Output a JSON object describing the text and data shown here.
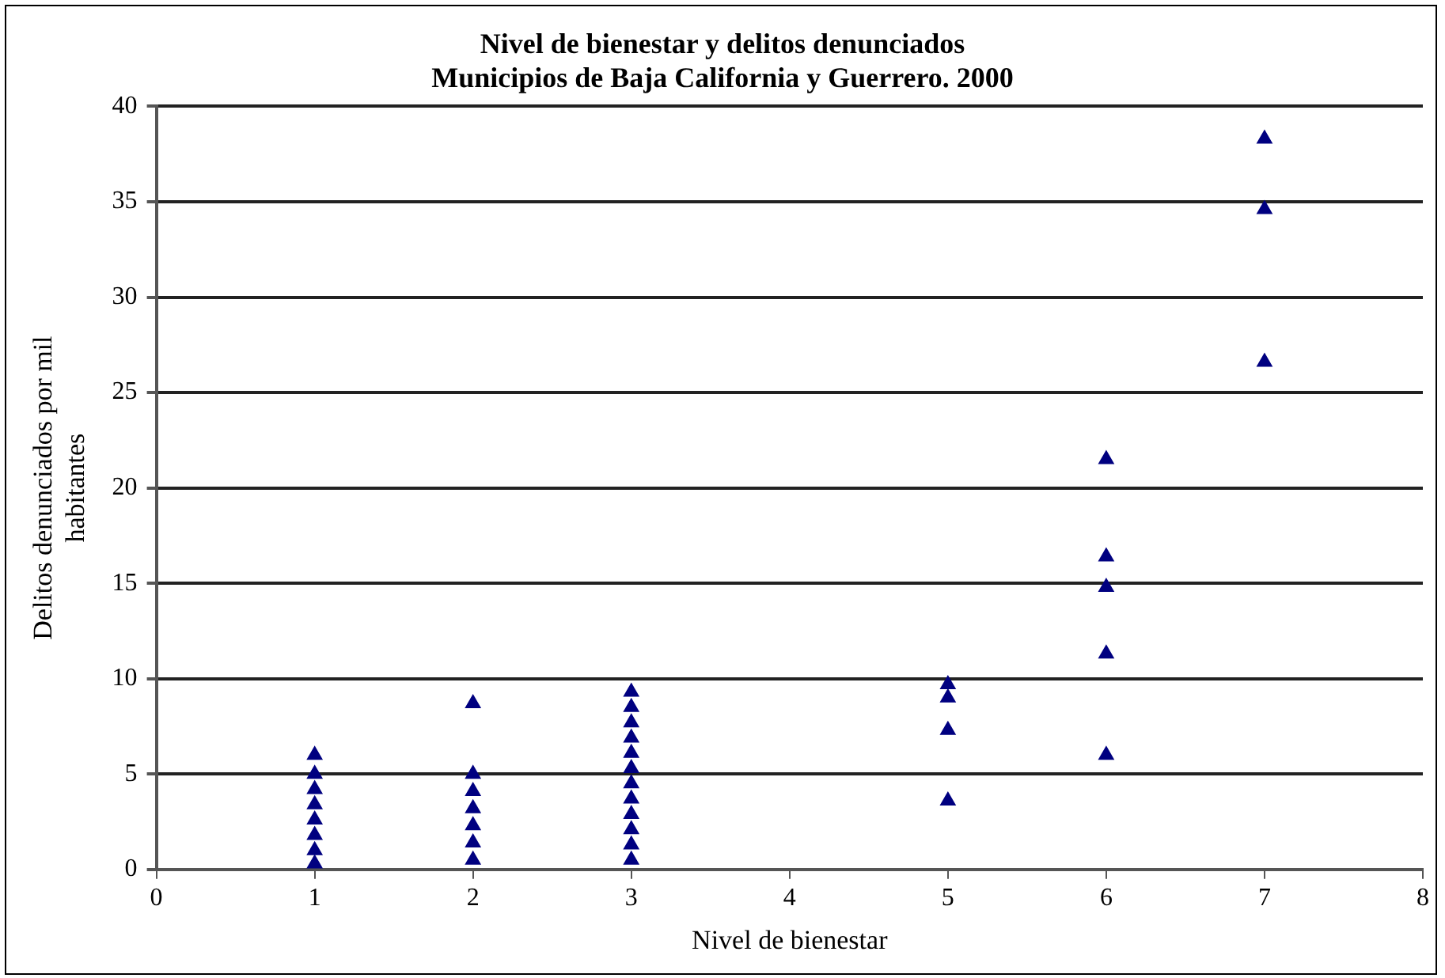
{
  "chart_data": {
    "type": "scatter",
    "title": "Nivel de bienestar y delitos denunciados\nMunicipios de Baja California y Guerrero. 2000",
    "xlabel": "Nivel de bienestar",
    "ylabel": "Delitos denunciados por mil\nhabitantes",
    "x": [
      1,
      1,
      1,
      1,
      1,
      1,
      1,
      1,
      2,
      2,
      2,
      2,
      2,
      2,
      2,
      3,
      3,
      3,
      3,
      3,
      3,
      3,
      3,
      3,
      3,
      3,
      3,
      5,
      5,
      5,
      5,
      6,
      6,
      6,
      6,
      6,
      7,
      7,
      7
    ],
    "series": [
      {
        "color": "#000080",
        "values": [
          6.0,
          5.0,
          4.2,
          3.4,
          2.6,
          1.8,
          1.0,
          0.3,
          8.7,
          5.0,
          4.1,
          3.2,
          2.3,
          1.4,
          0.5,
          9.3,
          8.5,
          7.7,
          6.9,
          6.1,
          5.3,
          4.5,
          3.7,
          2.9,
          2.1,
          1.3,
          0.5,
          9.7,
          9.0,
          7.3,
          3.6,
          21.5,
          16.4,
          14.8,
          11.3,
          6.0,
          38.3,
          34.6,
          26.6
        ]
      }
    ],
    "xlim": [
      0,
      8
    ],
    "xticks": [
      0,
      1,
      2,
      3,
      4,
      5,
      6,
      7,
      8
    ],
    "ylim": [
      0,
      40
    ],
    "yticks": [
      0,
      5,
      10,
      15,
      20,
      25,
      30,
      35,
      40
    ],
    "grid": "y",
    "legend": false,
    "marker": "triangle"
  }
}
